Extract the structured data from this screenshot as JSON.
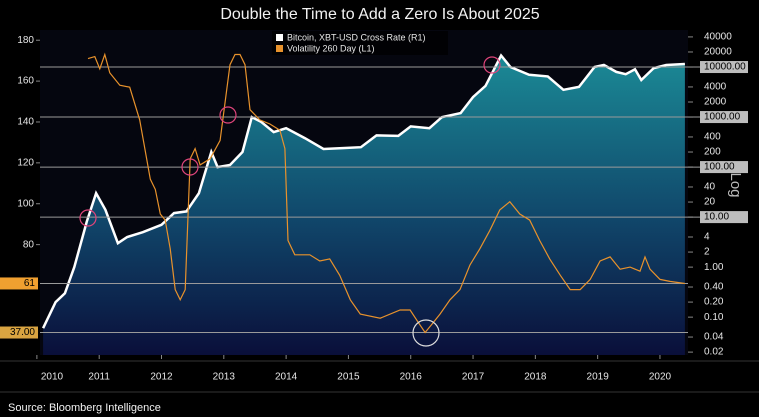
{
  "chart_data": {
    "type": "line",
    "title": "Double the Time to Add a Zero Is About 2025",
    "source": "Source: Bloomberg Intelligence",
    "y2_label": "Log",
    "y2_log": true,
    "xlim": [
      2010.55,
      2020.95
    ],
    "xticks": [
      {
        "value": 2010.5,
        "label": "2010"
      },
      {
        "value": 2011.5,
        "label": "2011"
      },
      {
        "value": 2012.5,
        "label": "2012"
      },
      {
        "value": 2013.5,
        "label": "2013"
      },
      {
        "value": 2014.5,
        "label": "2014"
      },
      {
        "value": 2015.5,
        "label": "2015"
      },
      {
        "value": 2016.5,
        "label": "2016"
      },
      {
        "value": 2017.5,
        "label": "2017"
      },
      {
        "value": 2018.5,
        "label": "2018"
      },
      {
        "value": 2019.5,
        "label": "2019"
      },
      {
        "value": 2020.5,
        "label": "2020"
      }
    ],
    "ylim": [
      26,
      185
    ],
    "yticks": [
      80,
      100,
      120,
      140,
      160,
      180
    ],
    "y2lim": [
      0.0175,
      55000
    ],
    "y2ticks": [
      40000,
      20000,
      {
        "value": 10000,
        "label": "10000.00"
      },
      4000,
      2000,
      {
        "value": 1000,
        "label": "1000.00"
      },
      400,
      200,
      {
        "value": 100,
        "label": "100.00"
      },
      40,
      20,
      {
        "value": 10,
        "label": "10.00"
      },
      4,
      2,
      {
        "value": 1,
        "label": "1.00"
      },
      {
        "value": 0.4,
        "label": "0.40"
      },
      {
        "value": 0.2,
        "label": "0.20"
      },
      {
        "value": 0.1,
        "label": "0.10"
      },
      0.04,
      0.02
    ],
    "y2_reference_lines": [
      10000,
      1000,
      100,
      10
    ],
    "y_markers": [
      {
        "value": 61,
        "label": "61",
        "color": "#f0a030"
      },
      {
        "value": 37,
        "label": "37.00",
        "color": "#d9a441"
      }
    ],
    "series": [
      {
        "name": "Bitcoin, XBT-USD Cross Rate (R1)",
        "color": "#ffffff",
        "axis": "y2",
        "x": [
          2010.6,
          2010.8,
          2010.95,
          2011.1,
          2011.3,
          2011.45,
          2011.6,
          2011.8,
          2011.95,
          2012.2,
          2012.5,
          2012.7,
          2012.9,
          2013.1,
          2013.3,
          2013.4,
          2013.6,
          2013.8,
          2013.95,
          2014.1,
          2014.3,
          2014.5,
          2014.8,
          2015.1,
          2015.4,
          2015.7,
          2015.95,
          2016.3,
          2016.5,
          2016.8,
          2017.0,
          2017.3,
          2017.5,
          2017.7,
          2017.95,
          2018.1,
          2018.4,
          2018.7,
          2018.95,
          2019.2,
          2019.45,
          2019.6,
          2019.8,
          2019.95,
          2020.1,
          2020.2,
          2020.4,
          2020.6,
          2020.9
        ],
        "values": [
          0.06,
          0.2,
          0.3,
          1,
          8,
          30,
          14,
          3,
          4,
          5,
          7,
          12,
          13,
          30,
          200,
          100,
          110,
          200,
          1000,
          800,
          500,
          600,
          380,
          230,
          240,
          250,
          430,
          420,
          650,
          600,
          1000,
          1200,
          2500,
          4200,
          17000,
          10000,
          7000,
          6500,
          3500,
          4000,
          10000,
          11000,
          8000,
          7200,
          9000,
          5500,
          9500,
          11000,
          11500
        ]
      },
      {
        "name": "Volatility 260 Day (L1)",
        "color": "#e8922c",
        "axis": "y",
        "x": [
          2011.32,
          2011.43,
          2011.51,
          2011.59,
          2011.67,
          2011.83,
          2011.99,
          2012.15,
          2012.32,
          2012.4,
          2012.48,
          2012.56,
          2012.64,
          2012.72,
          2012.8,
          2012.88,
          2012.96,
          2013.04,
          2013.12,
          2013.28,
          2013.44,
          2013.6,
          2013.68,
          2013.76,
          2013.84,
          2013.92,
          2014.08,
          2014.24,
          2014.4,
          2014.48,
          2014.53,
          2014.64,
          2014.88,
          2015.04,
          2015.2,
          2015.36,
          2015.53,
          2015.69,
          2016.01,
          2016.33,
          2016.49,
          2016.62,
          2016.73,
          2016.84,
          2016.97,
          2017.13,
          2017.29,
          2017.45,
          2017.61,
          2017.77,
          2017.93,
          2018.09,
          2018.25,
          2018.41,
          2018.57,
          2018.73,
          2018.9,
          2019.06,
          2019.22,
          2019.38,
          2019.54,
          2019.7,
          2019.86,
          2020.02,
          2020.18,
          2020.26,
          2020.34,
          2020.5,
          2020.66,
          2020.9
        ],
        "values": [
          171,
          172,
          166,
          173,
          164,
          158,
          157,
          141,
          112,
          107,
          95,
          92,
          78,
          58,
          53,
          58,
          122,
          127,
          119,
          122,
          131,
          168,
          173,
          173,
          168,
          146,
          141,
          139,
          136,
          127,
          82,
          75,
          75,
          72,
          73,
          65,
          53,
          46,
          44,
          48,
          48,
          42,
          37,
          41,
          46,
          53,
          58,
          70,
          78,
          87,
          97,
          101,
          95,
          92,
          82,
          73,
          65,
          58,
          58,
          63,
          72,
          74,
          68,
          69,
          67,
          74,
          68,
          63,
          62,
          61
        ]
      }
    ]
  }
}
